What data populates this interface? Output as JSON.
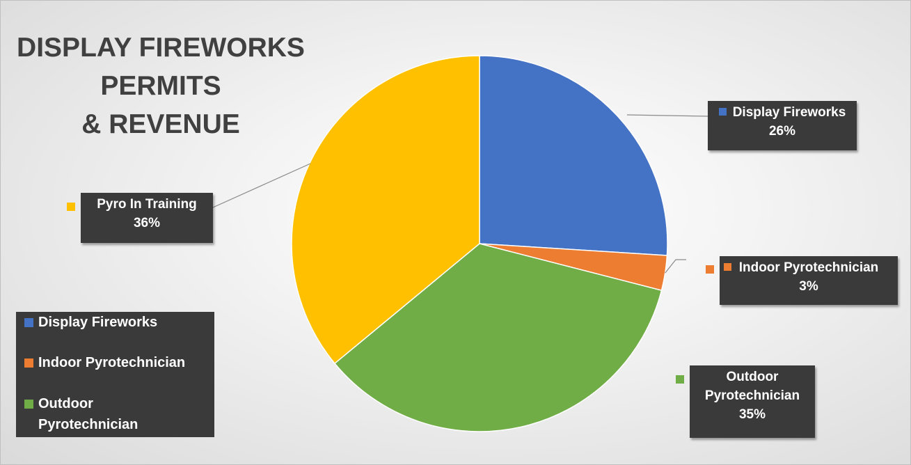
{
  "chart_data": {
    "type": "pie",
    "title_lines": [
      "DISPLAY FIREWORKS",
      "PERMITS",
      "& REVENUE"
    ],
    "categories": [
      "Display Fireworks",
      "Indoor Pyrotechnician",
      "Outdoor Pyrotechnician",
      "Pyro In Training"
    ],
    "values": [
      26,
      3,
      35,
      36
    ],
    "percent_labels": [
      "26%",
      "3%",
      "35%",
      "36%"
    ],
    "colors": [
      "#4472C4",
      "#ED7D31",
      "#70AD47",
      "#FFC000"
    ],
    "legend": {
      "placement": "left",
      "entries": [
        {
          "name": "Display Fireworks",
          "color": "#4472C4"
        },
        {
          "name": "Indoor Pyrotechnician",
          "color": "#ED7D31"
        },
        {
          "name": "Outdoor",
          "color": "#70AD47",
          "name_cont": "Pyrotechnician"
        }
      ]
    }
  },
  "data_labels": {
    "display": {
      "name": "Display Fireworks",
      "pct": "26%"
    },
    "indoor": {
      "name": "Indoor Pyrotechnician",
      "pct": "3%"
    },
    "outdoor": {
      "name_line1": "Outdoor",
      "name_line2": "Pyrotechnician",
      "pct": "35%"
    },
    "pyro": {
      "name": "Pyro In Training",
      "pct": "36%"
    }
  }
}
